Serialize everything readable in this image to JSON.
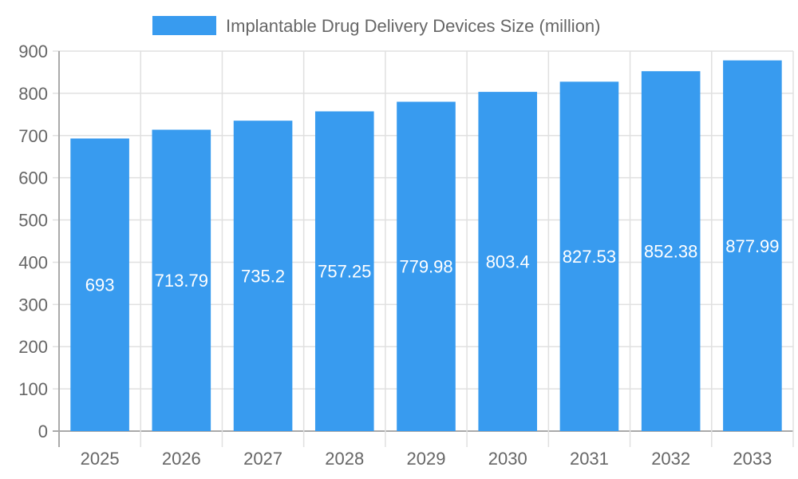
{
  "chart_data": {
    "type": "bar",
    "title": "",
    "xlabel": "",
    "ylabel": "",
    "categories": [
      "2025",
      "2026",
      "2027",
      "2028",
      "2029",
      "2030",
      "2031",
      "2032",
      "2033"
    ],
    "series": [
      {
        "name": "Implantable Drug Delivery Devices Size (million)",
        "values": [
          693,
          713.79,
          735.2,
          757.25,
          779.98,
          803.4,
          827.53,
          852.38,
          877.99
        ],
        "color": "#389bef"
      }
    ],
    "data_labels": [
      "693",
      "713.79",
      "735.2",
      "757.25",
      "779.98",
      "803.4",
      "827.53",
      "852.38",
      "877.99"
    ],
    "ylim": [
      0,
      900
    ],
    "yticks": [
      0,
      100,
      200,
      300,
      400,
      500,
      600,
      700,
      800,
      900
    ],
    "grid": true,
    "legend": "top-center"
  }
}
